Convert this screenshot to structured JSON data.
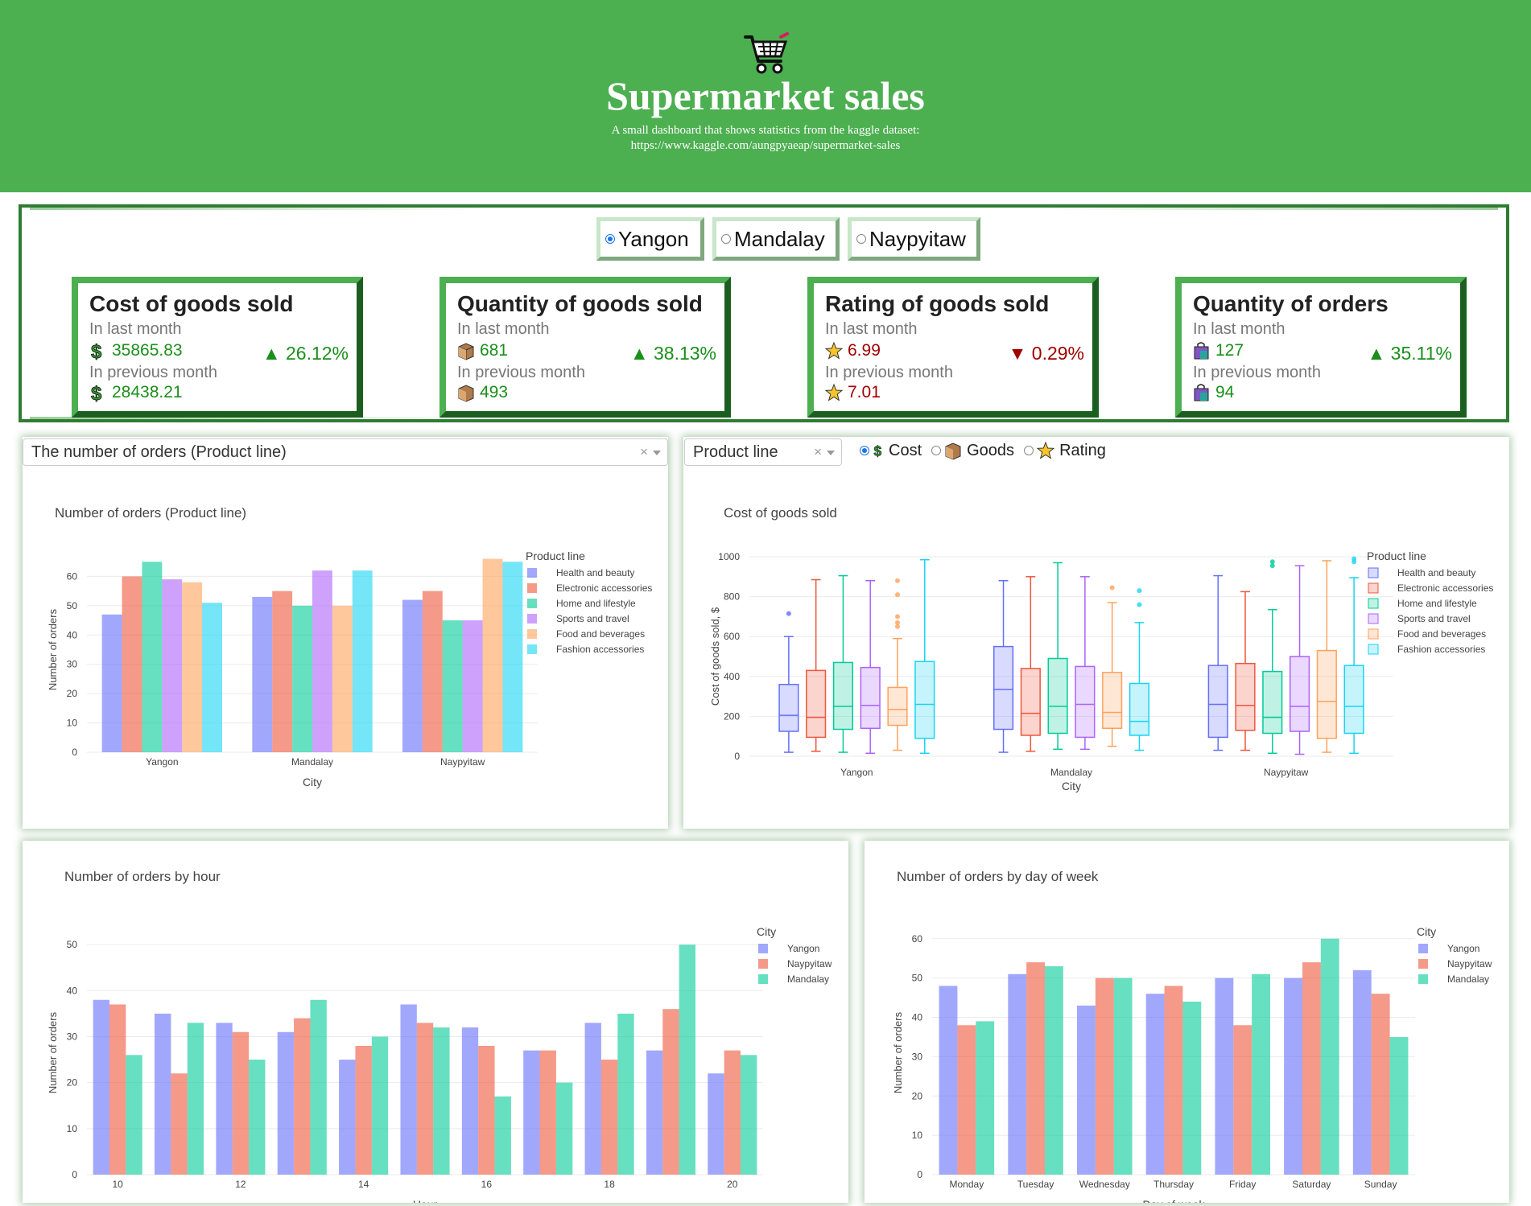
{
  "header": {
    "title": "Supermarket sales",
    "subtitle_line1": "A small dashboard that shows statistics from the kaggle dataset:",
    "subtitle_line2": "https://www.kaggle.com/aungpyaeap/supermarket-sales",
    "icon": "shopping-cart-icon",
    "color": "#4caf50"
  },
  "city_selector": {
    "options": [
      "Yangon",
      "Mandalay",
      "Naypyitaw"
    ],
    "selected": "Yangon"
  },
  "cards": [
    {
      "title": "Cost of goods sold",
      "last_label": "In last month",
      "last_value": "35865.83",
      "prev_label": "In previous month",
      "prev_value": "28438.21",
      "change": "▲ 26.12%",
      "direction": "up",
      "icon": "dollar-icon"
    },
    {
      "title": "Quantity of goods sold",
      "last_label": "In last month",
      "last_value": "681",
      "prev_label": "In previous month",
      "prev_value": "493",
      "change": "▲ 38.13%",
      "direction": "up",
      "icon": "box-icon"
    },
    {
      "title": "Rating of goods sold",
      "last_label": "In last month",
      "last_value": "6.99",
      "prev_label": "In previous month",
      "prev_value": "7.01",
      "change": "▼ 0.29%",
      "direction": "down",
      "icon": "star-icon"
    },
    {
      "title": "Quantity of orders",
      "last_label": "In last month",
      "last_value": "127",
      "prev_label": "In previous month",
      "prev_value": "94",
      "change": "▲ 35.11%",
      "direction": "up",
      "icon": "shopping-bag-icon"
    }
  ],
  "controls": {
    "orders_dropdown": "The number of orders (Product line)",
    "grouping_dropdown": "Product line",
    "metric_options": [
      "Cost",
      "Goods",
      "Rating"
    ],
    "metric_selected": "Cost",
    "clear_symbol": "×"
  },
  "colors": {
    "Health and beauty": "#636efa",
    "Electronic accessories": "#ef553b",
    "Home and lifestyle": "#00cc96",
    "Sports and travel": "#ab63fa",
    "Food and beverages": "#ffa15a",
    "Fashion accessories": "#19d3f3",
    "Yangon": "#636efa",
    "Naypyitaw": "#ef553b",
    "Mandalay": "#00cc96"
  },
  "chart_data": [
    {
      "id": "orders_product_line",
      "type": "bar",
      "title": "Number of orders (Product line)",
      "xlabel": "City",
      "ylabel": "Number of orders",
      "legend_title": "Product line",
      "ylim": [
        0,
        70
      ],
      "yticks": [
        0,
        10,
        20,
        30,
        40,
        50,
        60
      ],
      "categories": [
        "Yangon",
        "Mandalay",
        "Naypyitaw"
      ],
      "series": [
        {
          "name": "Health and beauty",
          "values": [
            47,
            53,
            52
          ]
        },
        {
          "name": "Electronic accessories",
          "values": [
            60,
            55,
            55
          ]
        },
        {
          "name": "Home and lifestyle",
          "values": [
            65,
            50,
            45
          ]
        },
        {
          "name": "Sports and travel",
          "values": [
            59,
            62,
            45
          ]
        },
        {
          "name": "Food and beverages",
          "values": [
            58,
            50,
            66
          ]
        },
        {
          "name": "Fashion accessories",
          "values": [
            51,
            62,
            65
          ]
        }
      ]
    },
    {
      "id": "cost_box",
      "type": "box",
      "title": "Cost of goods sold",
      "xlabel": "City",
      "ylabel": "Cost of goods sold, $",
      "legend_title": "Product line",
      "ylim": [
        0,
        1000
      ],
      "yticks": [
        0,
        200,
        400,
        600,
        800,
        1000
      ],
      "categories": [
        "Yangon",
        "Mandalay",
        "Naypyitaw"
      ],
      "series": [
        {
          "name": "Health and beauty",
          "boxes": [
            [
              20,
              125,
              205,
              360,
              600,
              [
                715
              ]
            ],
            [
              20,
              135,
              335,
              550,
              880,
              []
            ],
            [
              30,
              95,
              260,
              455,
              905,
              []
            ]
          ]
        },
        {
          "name": "Electronic accessories",
          "boxes": [
            [
              25,
              95,
              195,
              430,
              885,
              []
            ],
            [
              25,
              105,
              215,
              440,
              900,
              []
            ],
            [
              30,
              130,
              255,
              465,
              825,
              []
            ]
          ]
        },
        {
          "name": "Home and lifestyle",
          "boxes": [
            [
              20,
              135,
              250,
              470,
              905,
              []
            ],
            [
              35,
              115,
              250,
              490,
              970,
              []
            ],
            [
              15,
              115,
              195,
              425,
              735,
              [
                955,
                975
              ]
            ]
          ]
        },
        {
          "name": "Sports and travel",
          "boxes": [
            [
              15,
              140,
              255,
              445,
              880,
              []
            ],
            [
              35,
              95,
              260,
              450,
              900,
              []
            ],
            [
              10,
              125,
              250,
              500,
              955,
              []
            ]
          ]
        },
        {
          "name": "Food and beverages",
          "boxes": [
            [
              30,
              155,
              235,
              345,
              590,
              [
                650,
                670,
                700,
                810,
                880
              ]
            ],
            [
              50,
              140,
              220,
              420,
              770,
              [
                845
              ]
            ],
            [
              20,
              90,
              275,
              530,
              980,
              []
            ]
          ]
        },
        {
          "name": "Fashion accessories",
          "boxes": [
            [
              15,
              90,
              260,
              475,
              985,
              []
            ],
            [
              30,
              105,
              175,
              365,
              670,
              [
                760,
                830
              ]
            ],
            [
              15,
              115,
              250,
              455,
              895,
              [
                975,
                990
              ]
            ]
          ]
        }
      ]
    },
    {
      "id": "orders_by_hour",
      "type": "bar",
      "title": "Number of orders by hour",
      "xlabel": "Hour",
      "ylabel": "Number of orders",
      "legend_title": "City",
      "ylim": [
        0,
        53
      ],
      "yticks": [
        0,
        10,
        20,
        30,
        40,
        50
      ],
      "categories": [
        "10",
        "11",
        "12",
        "13",
        "14",
        "15",
        "16",
        "17",
        "18",
        "19",
        "20"
      ],
      "tick_labels": [
        "10",
        "",
        "12",
        "",
        "14",
        "",
        "16",
        "",
        "18",
        "",
        "20"
      ],
      "series": [
        {
          "name": "Yangon",
          "values": [
            38,
            35,
            33,
            31,
            25,
            37,
            32,
            27,
            33,
            27,
            22
          ]
        },
        {
          "name": "Naypyitaw",
          "values": [
            37,
            22,
            31,
            34,
            28,
            33,
            28,
            27,
            25,
            36,
            27
          ]
        },
        {
          "name": "Mandalay",
          "values": [
            26,
            33,
            25,
            38,
            30,
            32,
            17,
            20,
            35,
            50,
            26
          ]
        }
      ]
    },
    {
      "id": "orders_by_day",
      "type": "bar",
      "title": "Number of orders by day of week",
      "xlabel": "Day of week",
      "ylabel": "Number of orders",
      "legend_title": "City",
      "ylim": [
        0,
        62
      ],
      "yticks": [
        0,
        10,
        20,
        30,
        40,
        50,
        60
      ],
      "categories": [
        "Monday",
        "Tuesday",
        "Wednesday",
        "Thursday",
        "Friday",
        "Saturday",
        "Sunday"
      ],
      "series": [
        {
          "name": "Yangon",
          "values": [
            48,
            51,
            43,
            46,
            50,
            50,
            52
          ]
        },
        {
          "name": "Naypyitaw",
          "values": [
            38,
            54,
            50,
            48,
            38,
            54,
            46
          ]
        },
        {
          "name": "Mandalay",
          "values": [
            39,
            53,
            50,
            44,
            51,
            60,
            35
          ]
        }
      ]
    }
  ]
}
